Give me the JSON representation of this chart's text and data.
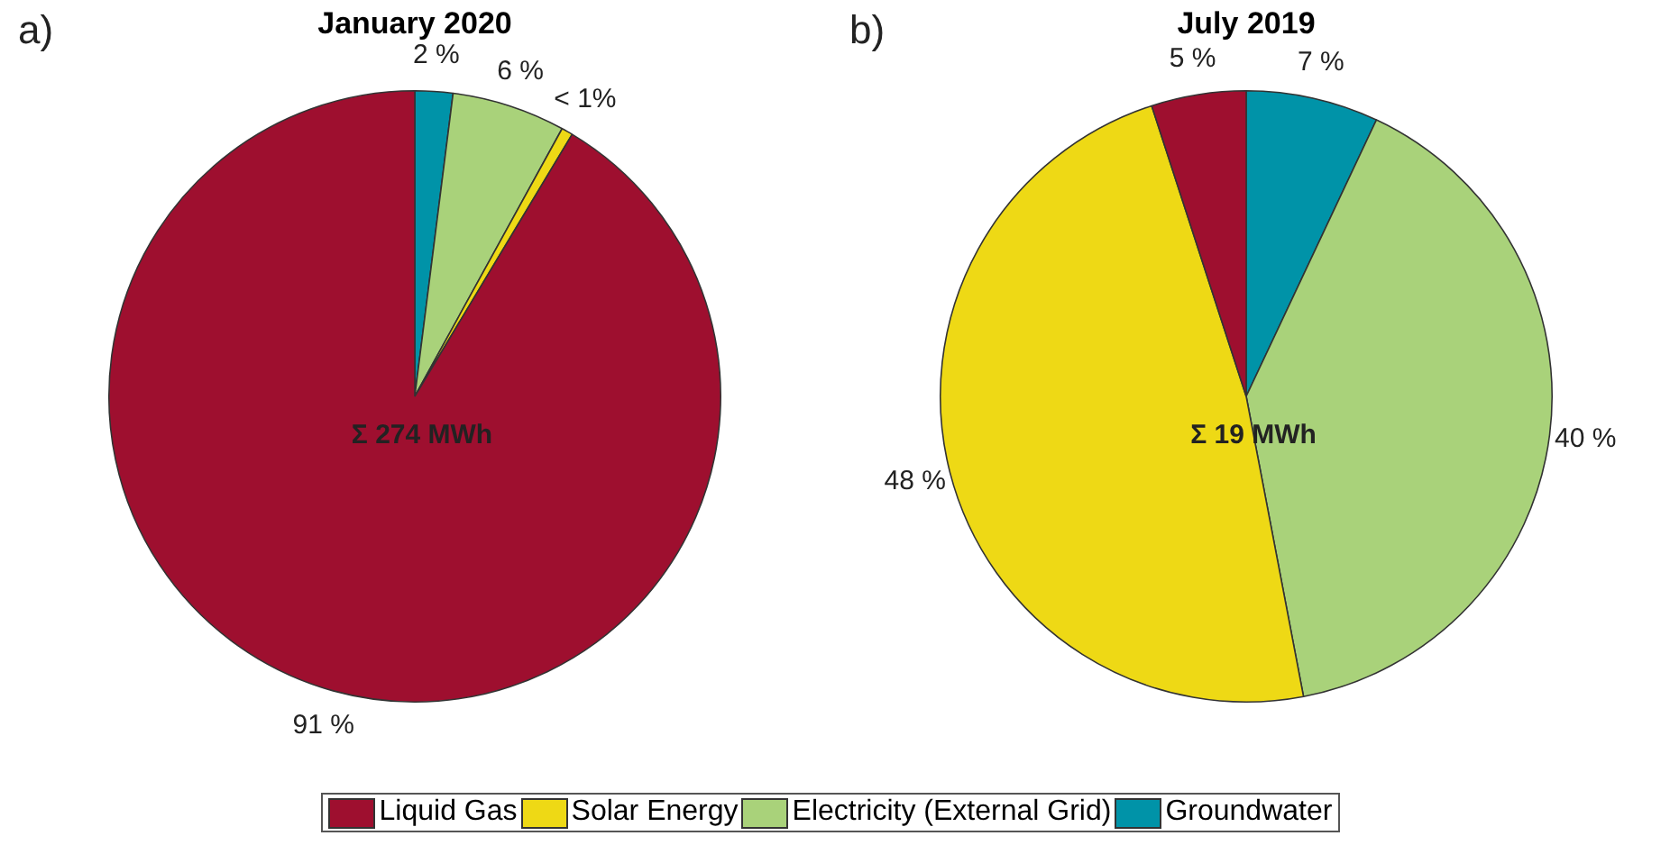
{
  "chart_data": [
    {
      "type": "pie",
      "title": "January 2020",
      "categories": [
        "Groundwater",
        "Electricity (External Grid)",
        "Solar Energy",
        "Liquid Gas"
      ],
      "values": [
        2,
        6,
        0.6,
        91.4
      ],
      "value_labels": [
        "2 %",
        "6 %",
        "< 1%",
        "91 %"
      ],
      "colors": [
        "#0093a8",
        "#a9d27a",
        "#eed915",
        "#9e0f2f"
      ],
      "annotations": [
        "a)",
        "Σ 274 MWh"
      ],
      "legend": "bottom"
    },
    {
      "type": "pie",
      "title": "July 2019",
      "categories": [
        null,
        null,
        null,
        null
      ],
      "values": [
        7,
        40,
        48,
        5
      ],
      "value_labels": [
        "7 %",
        "40 %",
        "48 %",
        "5 %"
      ],
      "colors": [
        "#0093a8",
        "#a9d27a",
        "#eed915",
        "#9e0f2f"
      ],
      "annotations": [
        "b)",
        "Σ 19 MWh"
      ]
    }
  ]
}
